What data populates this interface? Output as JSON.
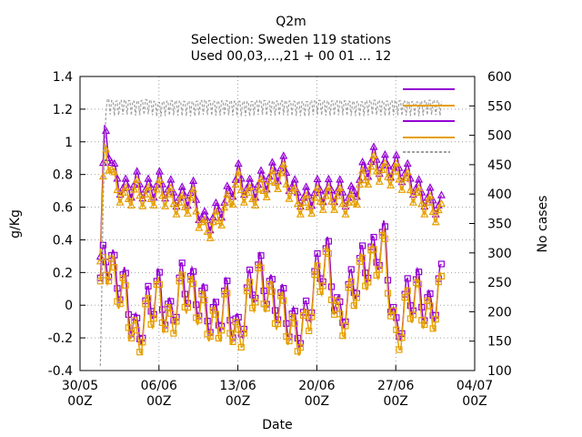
{
  "chart_data": {
    "type": "line",
    "title_lines": [
      "Q2m",
      "Selection: Sweden     119 stations",
      "Used 00,03,...,21 + 00 01 ... 12"
    ],
    "xlabel": "Date",
    "ylabel": "g/Kg",
    "y2label": "No cases",
    "ylim": [
      -0.4,
      1.4
    ],
    "y2lim": [
      100,
      600
    ],
    "yticks": [
      "-0.4",
      "-0.2",
      "0",
      "0.2",
      "0.4",
      "0.6",
      "0.8",
      "1",
      "1.2",
      "1.4"
    ],
    "y2ticks": [
      "100",
      "150",
      "200",
      "250",
      "300",
      "350",
      "400",
      "450",
      "500",
      "550",
      "600"
    ],
    "xticks": [
      {
        "line1": "30/05",
        "line2": "00Z"
      },
      {
        "line1": "06/06",
        "line2": "00Z"
      },
      {
        "line1": "13/06",
        "line2": "00Z"
      },
      {
        "line1": "20/06",
        "line2": "00Z"
      },
      {
        "line1": "27/06",
        "line2": "00Z"
      },
      {
        "line1": "04/07",
        "line2": "00Z"
      }
    ],
    "x_range_days": [
      0,
      35
    ],
    "data_range_days": [
      1.8,
      32.1
    ],
    "legend_placement": "top-right",
    "grid": true,
    "series": [
      {
        "role": "purple_upper",
        "color": "#9400D3",
        "marker": "triangle",
        "axis": "left",
        "x": [
          1.8,
          2.2,
          3,
          4,
          5,
          6,
          7,
          8,
          9,
          10,
          11,
          12,
          13,
          14,
          15,
          16,
          17,
          18,
          19,
          20,
          21,
          22,
          23,
          24,
          25,
          26,
          27,
          28,
          29,
          30,
          31,
          32.1
        ],
        "y": [
          0.3,
          1.1,
          0.8,
          0.7,
          0.75,
          0.7,
          0.75,
          0.7,
          0.65,
          0.7,
          0.5,
          0.55,
          0.65,
          0.8,
          0.7,
          0.75,
          0.8,
          0.85,
          0.7,
          0.65,
          0.7,
          0.7,
          0.7,
          0.65,
          0.8,
          0.9,
          0.85,
          0.85,
          0.8,
          0.7,
          0.65,
          0.6
        ]
      },
      {
        "role": "orange_upper",
        "color": "#E69F00",
        "marker": "triangle",
        "axis": "left",
        "x": [
          1.8,
          2.2,
          3,
          4,
          5,
          6,
          7,
          8,
          9,
          10,
          11,
          12,
          13,
          14,
          15,
          16,
          17,
          18,
          19,
          20,
          21,
          22,
          23,
          24,
          25,
          26,
          27,
          28,
          29,
          30,
          31,
          32.1
        ],
        "y": [
          0.25,
          1.0,
          0.75,
          0.65,
          0.7,
          0.65,
          0.7,
          0.65,
          0.6,
          0.65,
          0.45,
          0.5,
          0.6,
          0.75,
          0.65,
          0.7,
          0.75,
          0.8,
          0.65,
          0.6,
          0.65,
          0.65,
          0.65,
          0.6,
          0.75,
          0.85,
          0.8,
          0.8,
          0.75,
          0.65,
          0.6,
          0.55
        ]
      },
      {
        "role": "purple_lower",
        "color": "#9400D3",
        "marker": "square",
        "axis": "left",
        "x": [
          1.8,
          2.2,
          3,
          4,
          5,
          6,
          7,
          8,
          9,
          10,
          11,
          12,
          13,
          14,
          15,
          16,
          17,
          18,
          19,
          20,
          21,
          22,
          23,
          24,
          25,
          26,
          27,
          28,
          29,
          30,
          31,
          32.1
        ],
        "y": [
          0.1,
          0.35,
          0.2,
          0.1,
          -0.2,
          0.0,
          0.1,
          -0.1,
          0.15,
          0.1,
          0.0,
          -0.1,
          0.05,
          -0.2,
          0.1,
          0.2,
          0.05,
          0.0,
          -0.15,
          -0.1,
          0.2,
          0.3,
          -0.1,
          0.1,
          0.25,
          0.3,
          0.4,
          -0.2,
          0.05,
          0.1,
          -0.05,
          0.15
        ]
      },
      {
        "role": "orange_lower",
        "color": "#E69F00",
        "marker": "square",
        "axis": "left",
        "x": [
          1.8,
          2.2,
          3,
          4,
          5,
          6,
          7,
          8,
          9,
          10,
          11,
          12,
          13,
          14,
          15,
          16,
          17,
          18,
          19,
          20,
          21,
          22,
          23,
          24,
          25,
          26,
          27,
          28,
          29,
          30,
          31,
          32.1
        ],
        "y": [
          0.05,
          0.3,
          0.15,
          0.05,
          -0.25,
          -0.05,
          0.05,
          -0.15,
          0.1,
          0.05,
          -0.05,
          -0.15,
          0.0,
          -0.25,
          0.05,
          0.15,
          0.0,
          -0.05,
          -0.2,
          -0.15,
          0.15,
          0.25,
          -0.15,
          0.05,
          0.2,
          0.25,
          0.35,
          -0.25,
          0.0,
          0.05,
          -0.1,
          0.1
        ]
      },
      {
        "role": "grey_count",
        "color": "#A0A0A0",
        "marker": "none",
        "dashed": true,
        "axis": "right",
        "x": [
          1.8,
          2.0,
          2.3,
          3,
          4,
          5,
          6,
          7,
          8,
          9,
          10,
          11,
          12,
          13,
          14,
          15,
          16,
          17,
          18,
          19,
          20,
          21,
          22,
          23,
          24,
          25,
          26,
          27,
          28,
          29,
          30,
          31,
          32.1
        ],
        "y": [
          120,
          360,
          575,
          570,
          572,
          570,
          573,
          568,
          571,
          570,
          569,
          572,
          570,
          571,
          570,
          569,
          572,
          570,
          571,
          570,
          569,
          572,
          570,
          571,
          570,
          569,
          572,
          570,
          571,
          570,
          569,
          572,
          570
        ]
      }
    ]
  }
}
